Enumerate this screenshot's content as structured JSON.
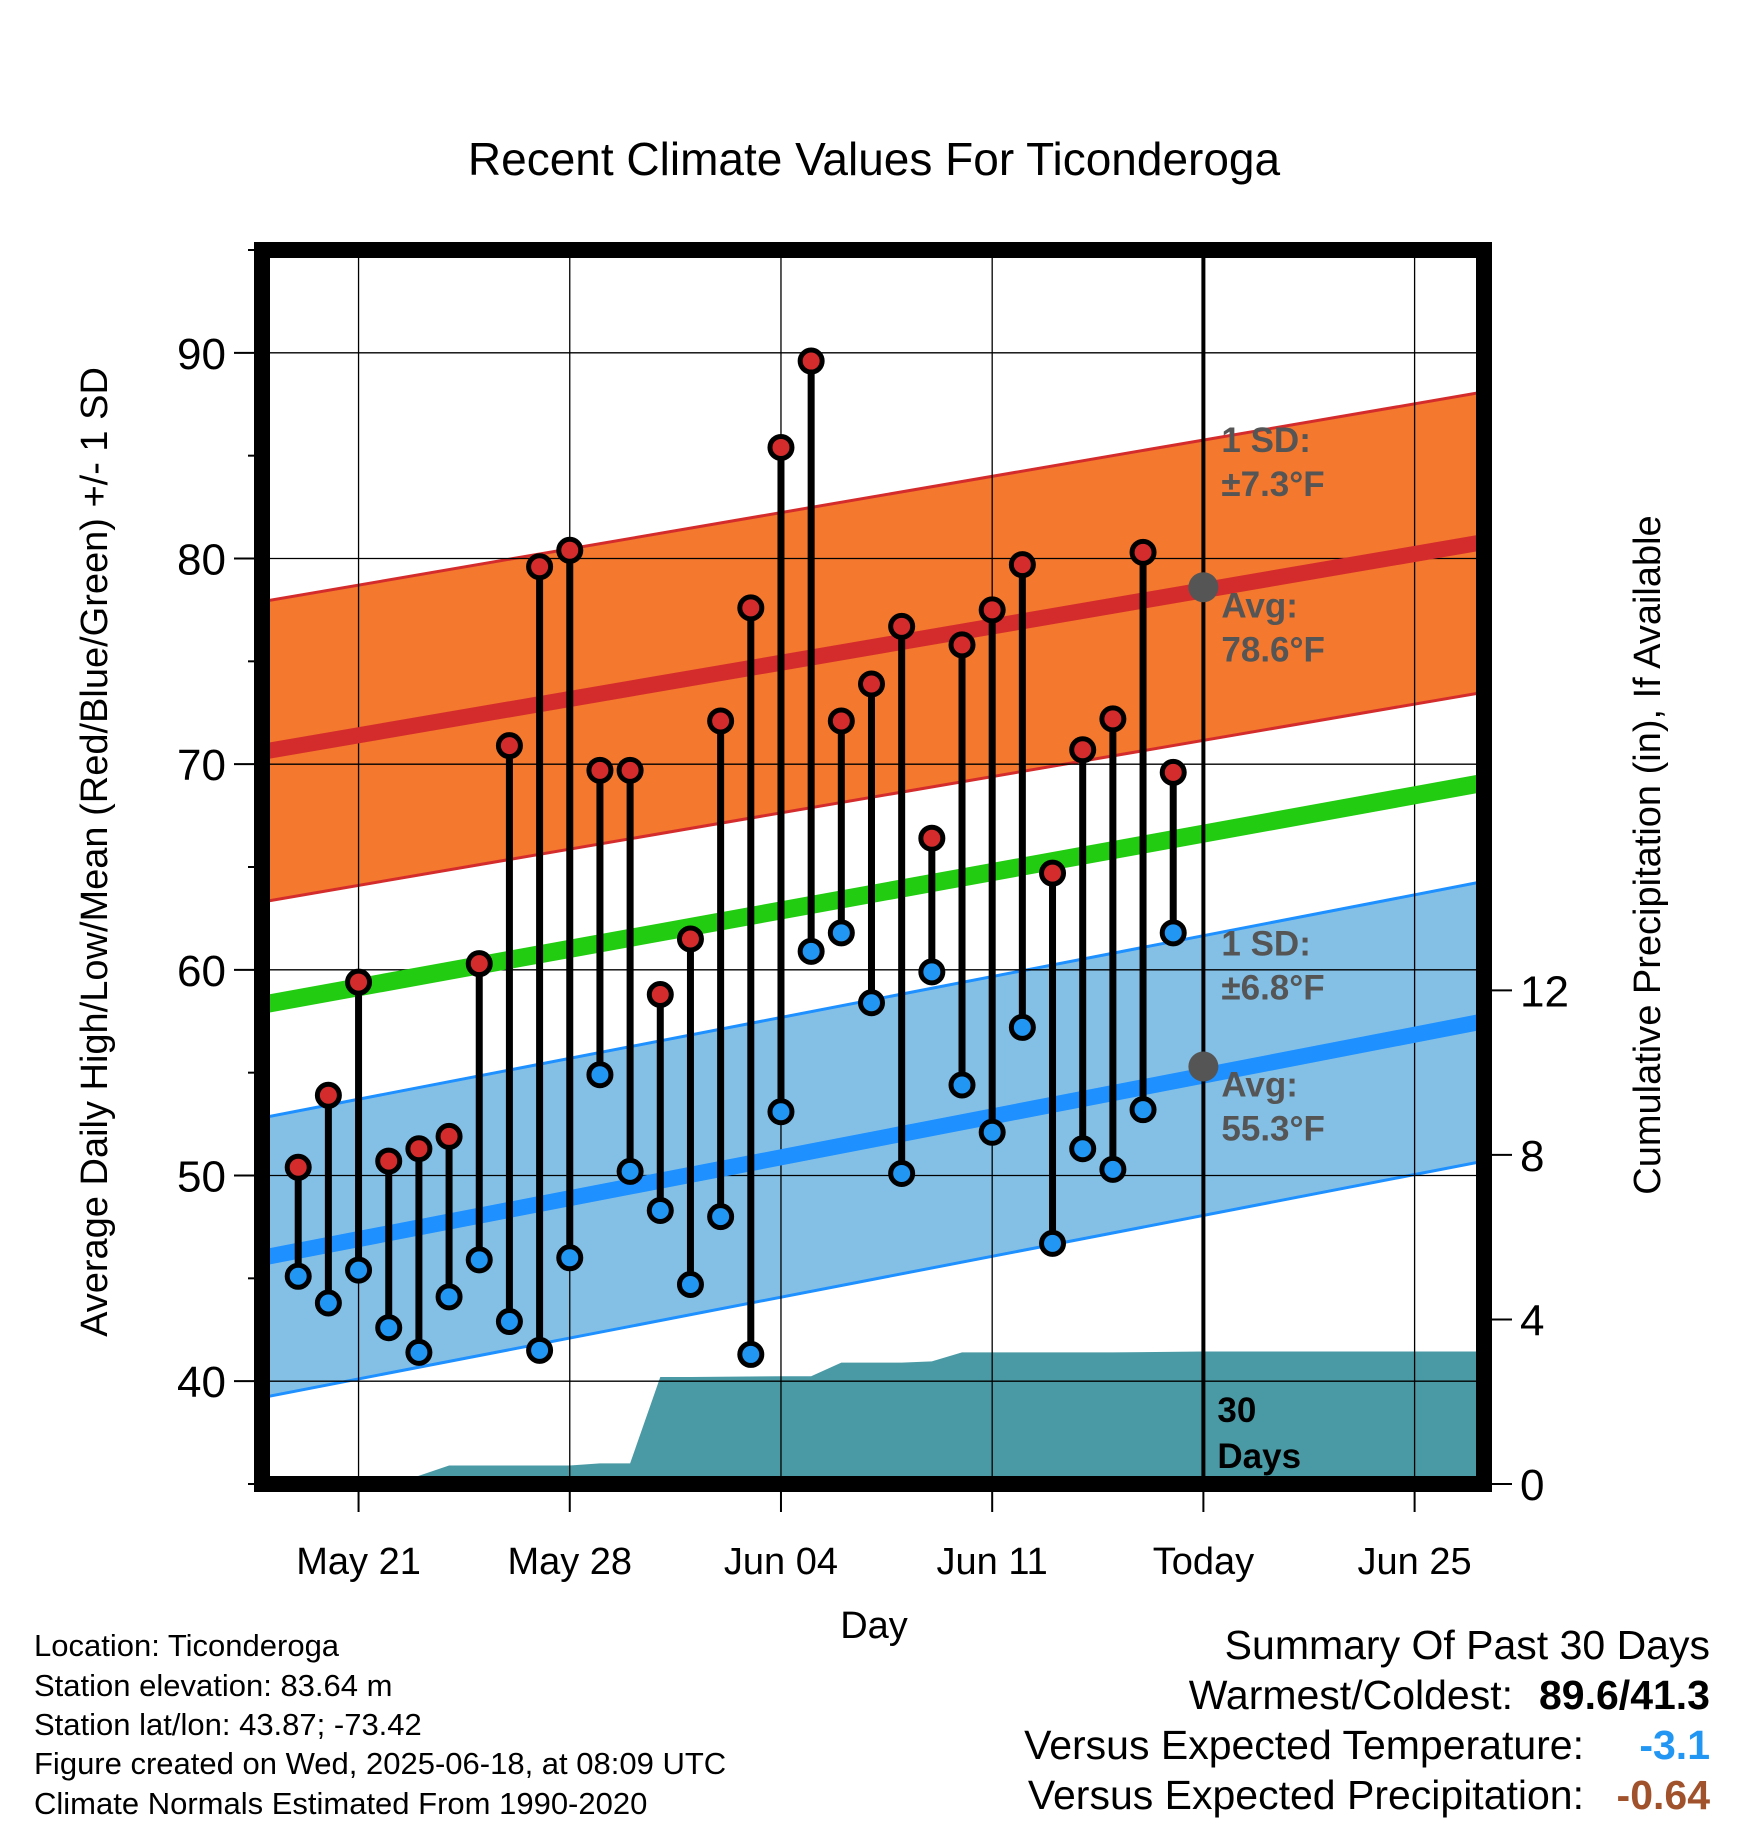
{
  "chart_data": {
    "type": "line",
    "title": "Recent Climate Values For Ticonderoga",
    "xlabel": "Day",
    "ylabel_left": "Average Daily High/Low/Mean (Red/Blue/Green) +/- 1 SD",
    "ylabel_right": "Cumulative Precipitation (in), If Available",
    "ylim_left": [
      35,
      95
    ],
    "ylim_right": [
      0,
      30
    ],
    "y_ticks_left": [
      40,
      50,
      60,
      70,
      80,
      90
    ],
    "y_ticks_right": [
      0,
      4,
      8,
      12
    ],
    "x_ticks": [
      {
        "day": 3,
        "label": "May 21"
      },
      {
        "day": 10,
        "label": "May 28"
      },
      {
        "day": 17,
        "label": "Jun 04"
      },
      {
        "day": 24,
        "label": "Jun 11"
      },
      {
        "day": 31,
        "label": "Today"
      },
      {
        "day": 38,
        "label": "Jun 25"
      }
    ],
    "x_range": [
      -0.2,
      40.3
    ],
    "today_day": 31,
    "grid": true,
    "days": [
      1,
      2,
      3,
      4,
      5,
      6,
      7,
      8,
      9,
      10,
      11,
      12,
      13,
      14,
      15,
      16,
      17,
      18,
      19,
      20,
      21,
      22,
      23,
      24,
      25,
      26,
      27,
      28,
      29,
      30
    ],
    "series": [
      {
        "name": "High",
        "color": "#d42c2c",
        "values": [
          50.4,
          53.9,
          59.4,
          50.7,
          51.3,
          51.9,
          60.3,
          70.9,
          79.6,
          80.4,
          69.7,
          69.7,
          58.8,
          61.5,
          72.1,
          77.6,
          85.4,
          89.6,
          72.1,
          73.9,
          76.7,
          66.4,
          75.8,
          77.5,
          79.7,
          64.7,
          70.7,
          72.2,
          80.3,
          69.6
        ]
      },
      {
        "name": "Low",
        "color": "#2196f3",
        "values": [
          45.1,
          43.8,
          45.4,
          42.6,
          41.4,
          44.1,
          45.9,
          42.9,
          41.5,
          46.0,
          54.9,
          50.2,
          48.3,
          44.7,
          48.0,
          41.3,
          53.1,
          60.9,
          61.8,
          58.4,
          50.1,
          59.9,
          54.4,
          52.1,
          57.2,
          46.7,
          51.3,
          50.3,
          53.2,
          61.8
        ]
      }
    ],
    "normals": {
      "high_avg": {
        "start": 70.6,
        "end": 80.8,
        "label": "Avg:",
        "value": "78.6°F",
        "today": 78.6
      },
      "high_sd": {
        "value": 7.3,
        "label": "1 SD:",
        "text": "±7.3°F"
      },
      "mean_avg": {
        "start": 58.3,
        "end": 69.1
      },
      "low_avg": {
        "start": 46.0,
        "end": 57.5,
        "label": "Avg:",
        "value": "55.3°F",
        "today": 55.3
      },
      "low_sd": {
        "value": 6.8,
        "label": "1 SD:",
        "text": "±6.8°F"
      }
    },
    "precipitation": {
      "color": "#4a9aa5",
      "points": [
        [
          4.2,
          0.0
        ],
        [
          5.0,
          0.2
        ],
        [
          6.0,
          0.45
        ],
        [
          8.0,
          0.45
        ],
        [
          10.0,
          0.45
        ],
        [
          11.0,
          0.5
        ],
        [
          12.0,
          0.5
        ],
        [
          13.0,
          2.6
        ],
        [
          14.0,
          2.6
        ],
        [
          17.0,
          2.62
        ],
        [
          18.0,
          2.62
        ],
        [
          19.0,
          2.95
        ],
        [
          21.0,
          2.95
        ],
        [
          22.0,
          2.98
        ],
        [
          23.0,
          3.2
        ],
        [
          25.0,
          3.2
        ],
        [
          28.0,
          3.2
        ],
        [
          31.0,
          3.22
        ],
        [
          40.3,
          3.22
        ]
      ],
      "days_label": "30",
      "days_label_2": "Days"
    },
    "colors": {
      "high_band": "#f4782d",
      "high_line": "#d42c2c",
      "high_marker": "#d42c2c",
      "low_band": "#84c0e6",
      "low_line": "#1e90ff",
      "low_marker": "#2196f3",
      "mean_line": "#22cc11",
      "annotation": "#555555",
      "today_marker": "#555555"
    }
  },
  "info": {
    "location": "Location: Ticonderoga",
    "elevation": "Station elevation: 83.64 m",
    "latlon": "Station lat/lon: 43.87; -73.42",
    "created": "Figure created on Wed, 2025-06-18, at 08:09 UTC",
    "normals": "Climate Normals Estimated From 1990-2020"
  },
  "summary": {
    "title": "Summary Of Past 30 Days",
    "warm_cold_label": "Warmest/Coldest:",
    "warm_cold_value": "89.6/41.3",
    "temp_label": "Versus Expected Temperature:",
    "temp_value": "-3.1",
    "temp_color": "#2196f3",
    "precip_label": "Versus Expected Precipitation:",
    "precip_value": "-0.64",
    "precip_color": "#a0522d"
  }
}
